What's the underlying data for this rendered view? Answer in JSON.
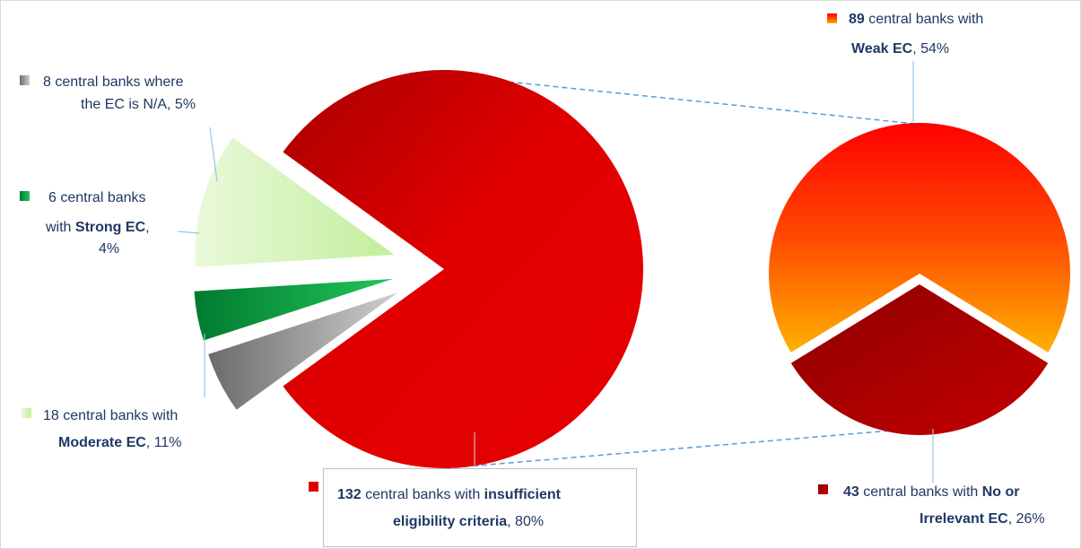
{
  "chart_data": {
    "type": "bar-of-pie",
    "main_pie": {
      "slices": [
        {
          "count": "132",
          "text": " central banks with ",
          "bold": "insufficient eligibility criteria",
          "pct": ", 80%",
          "value": 80
        },
        {
          "count": "8",
          "text": " central banks where the EC is N/A",
          "bold": "",
          "pct": ", 5%",
          "value": 5
        },
        {
          "count": "6",
          "text": " central banks with ",
          "bold": "Strong EC",
          "pct": ", 4%",
          "value": 4
        },
        {
          "count": "18",
          "text": " central banks with ",
          "bold": "Moderate EC",
          "pct": ", 11%",
          "value": 11
        }
      ]
    },
    "secondary_pie": {
      "slices": [
        {
          "count": "89",
          "text": " central banks with ",
          "bold": "Weak EC",
          "pct": ", 54%",
          "value": 54
        },
        {
          "count": "43",
          "text": " central banks with ",
          "bold": "No or Irrelevant EC",
          "pct": ", 26%",
          "value": 26
        }
      ]
    }
  },
  "labels": {
    "na": {
      "line1": "8 central banks where",
      "line2": "the EC is N/A, 5%"
    },
    "strong": {
      "line1": "6 central banks",
      "line2a": "with ",
      "line2b": "Strong EC",
      "line2c": ",",
      "line3": "4%"
    },
    "moderate": {
      "line1": "18 central banks with",
      "line2a": "Moderate EC",
      "line2b": ", 11%"
    },
    "insufficient": {
      "line1a": "132",
      "line1b": " central banks with ",
      "line1c": "insufficient",
      "line2a": "eligibility criteria",
      "line2b": ", 80%"
    },
    "weak": {
      "line1a": "89",
      "line1b": " central banks with",
      "line2a": "Weak EC",
      "line2b": ", 54%"
    },
    "irrelevant": {
      "line1a": "43",
      "line1b": " central banks with ",
      "line1c": "No or",
      "line2a": "Irrelevant EC",
      "line2b": ", 26%"
    }
  },
  "colors": {
    "insufficient": "#cc0000",
    "na": "#808080",
    "strong": "#00a040",
    "moderate": "#c6efa0",
    "weak": "#ff2a00",
    "irrelevant": "#9e0000",
    "label_text": "#1f3864",
    "leader": "#9dc3e6"
  }
}
